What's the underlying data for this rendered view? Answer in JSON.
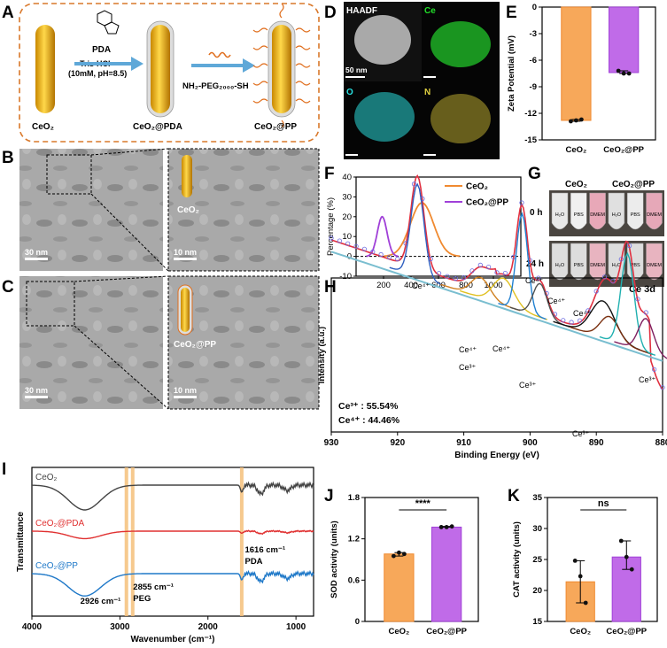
{
  "panel_labels": [
    "A",
    "B",
    "C",
    "D",
    "E",
    "F",
    "G",
    "H",
    "I",
    "J",
    "K"
  ],
  "scheme": {
    "start": "CeO₂",
    "pda_label": "PDA",
    "buffer_line1": "Tris-HCl",
    "buffer_line2": "(10mM, pH=8.5)",
    "mid": "CeO₂@PDA",
    "reagent": "NH₂-PEG₂₀₀₀-SH",
    "end": "CeO₂@PP"
  },
  "tem": {
    "b_scale_left": "30 nm",
    "b_scale_right": "10 nm",
    "b_inset": "CeO₂",
    "c_scale_left": "30 nm",
    "c_scale_right": "10 nm",
    "c_inset": "CeO₂@PP"
  },
  "eds": {
    "haadf": "HAADF",
    "ce": "Ce",
    "o": "O",
    "n": "N",
    "scale": "50 nm"
  },
  "colors": {
    "ceo2": "#F7A85A",
    "ceo2_line": "#F08A30",
    "pp": "#C06BE8",
    "pp_line": "#A040D8",
    "pda": "#E03030",
    "ftir_pp": "#1E78C8",
    "ftir_ceo2": "#444444",
    "highlight": "#F5C07A"
  },
  "chart_data": [
    {
      "type": "bar",
      "id": "E",
      "categories": [
        "CeO₂",
        "CeO₂@PP"
      ],
      "values": [
        -12.8,
        -7.4
      ],
      "points": [
        [
          -12.9,
          -12.8,
          -12.7
        ],
        [
          -7.2,
          -7.5,
          -7.5
        ]
      ],
      "ylabel": "Zeta Potential (mV)",
      "ylim": [
        -15,
        0
      ],
      "yticks": [
        "0",
        "-3",
        "-6",
        "-9",
        "-12",
        "-15"
      ]
    },
    {
      "type": "line",
      "id": "F",
      "ylabel": "Percentage (%)",
      "xlim": [
        0,
        1200
      ],
      "ylim": [
        -10,
        40
      ],
      "xticks": [
        "200",
        "400",
        "600",
        "800",
        "1000"
      ],
      "yticks": [
        "-10",
        "0",
        "10",
        "20",
        "30",
        "40"
      ],
      "series": [
        {
          "name": "CeO₂",
          "peak_x": 480,
          "peak_y": 27,
          "width": 120
        },
        {
          "name": "CeO₂@PP",
          "peak_x": 190,
          "peak_y": 20,
          "width": 50
        }
      ]
    },
    {
      "type": "line",
      "id": "H",
      "title": "Ce 3d",
      "xlabel": "Binding Energy (eV)",
      "ylabel": "Intensity (a.u.)",
      "xlim": [
        930,
        880
      ],
      "xticks": [
        "930",
        "920",
        "910",
        "900",
        "890",
        "880"
      ],
      "labels": [
        "Ce⁴⁺",
        "Ce⁴⁺",
        "Ce⁴⁺",
        "Ce⁴⁺",
        "Ce⁴⁺",
        "Ce⁴⁺",
        "Ce³⁺",
        "Ce³⁺",
        "Ce³⁺",
        "Ce³⁺"
      ],
      "ratios": [
        "Ce³⁺ : 55.54%",
        "Ce⁴⁺ : 44.46%"
      ]
    },
    {
      "type": "line",
      "id": "I",
      "xlabel": "Wavenumber (cm⁻¹)",
      "ylabel": "Transmittance",
      "xlim": [
        4000,
        800
      ],
      "xticks": [
        "4000",
        "3000",
        "2000",
        "1000"
      ],
      "series": [
        {
          "name": "CeO₂"
        },
        {
          "name": "CeO₂@PDA"
        },
        {
          "name": "CeO₂@PP"
        }
      ],
      "annotations": [
        "2926 cm⁻¹",
        "2855 cm⁻¹",
        "PEG",
        "1616 cm⁻¹",
        "PDA"
      ]
    },
    {
      "type": "bar",
      "id": "J",
      "categories": [
        "CeO₂",
        "CeO₂@PP"
      ],
      "values": [
        0.98,
        1.37
      ],
      "points": [
        [
          0.95,
          1.0,
          0.98
        ],
        [
          1.37,
          1.37,
          1.38
        ]
      ],
      "ylabel": "SOD activity (units)",
      "ylim": [
        0,
        1.8
      ],
      "yticks": [
        "0",
        "0.6",
        "1.2",
        "1.8"
      ],
      "significance": "****"
    },
    {
      "type": "bar",
      "id": "K",
      "categories": [
        "CeO₂",
        "CeO₂@PP"
      ],
      "values": [
        21.4,
        25.4
      ],
      "points": [
        [
          24.8,
          22.3,
          18.0
        ],
        [
          28.0,
          25.4,
          23.4
        ]
      ],
      "ylabel": "CAT activity (units)",
      "ylim": [
        15,
        35
      ],
      "yticks": [
        "15",
        "20",
        "25",
        "30",
        "35"
      ],
      "significance": "ns"
    }
  ],
  "photos": {
    "col1": "CeO₂",
    "col2": "CeO₂@PP",
    "row1": "0 h",
    "row2": "24 h",
    "tube_labels": [
      "H₂O",
      "PBS",
      "DMEM",
      "H₂O",
      "PBS",
      "DMEM"
    ]
  }
}
